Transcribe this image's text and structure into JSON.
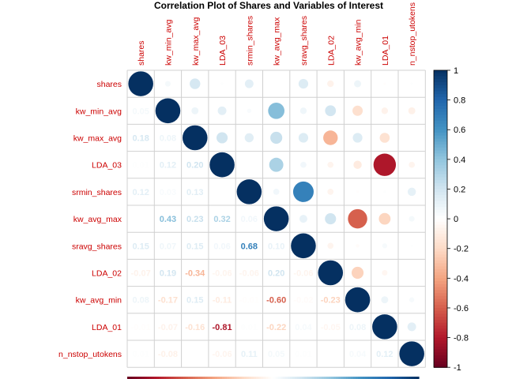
{
  "chart_data": {
    "type": "heatmap",
    "title": "Correlation Plot of Shares and Variables of Interest",
    "variables": [
      "shares",
      "kw_min_avg",
      "kw_max_avg",
      "LDA_03",
      "srmin_shares",
      "kw_avg_max",
      "sravg_shares",
      "LDA_02",
      "kw_avg_min",
      "LDA_01",
      "n_nstop_utokens"
    ],
    "matrix": [
      [
        1.0,
        0.05,
        0.18,
        0.01,
        0.12,
        0.0,
        0.15,
        -0.07,
        0.08,
        -0.01,
        0.01
      ],
      [
        0.05,
        1.0,
        0.08,
        0.12,
        0.03,
        0.43,
        0.07,
        0.19,
        -0.17,
        -0.07,
        -0.08
      ],
      [
        0.18,
        0.08,
        1.0,
        0.2,
        0.13,
        0.23,
        0.15,
        -0.34,
        0.15,
        -0.16,
        0.0
      ],
      [
        0.01,
        0.12,
        0.2,
        1.0,
        0.0,
        0.32,
        0.06,
        -0.06,
        -0.11,
        -0.81,
        -0.06
      ],
      [
        0.12,
        0.03,
        0.13,
        0.0,
        1.0,
        0.06,
        0.68,
        -0.06,
        -0.01,
        0.01,
        0.11
      ],
      [
        0.0,
        0.43,
        0.23,
        0.32,
        0.06,
        1.0,
        0.1,
        0.2,
        -0.6,
        -0.22,
        0.05
      ],
      [
        0.15,
        0.07,
        0.15,
        0.06,
        0.68,
        0.1,
        1.0,
        -0.06,
        -0.02,
        0.04,
        0.01
      ],
      [
        -0.07,
        0.19,
        -0.34,
        -0.06,
        -0.06,
        0.2,
        -0.06,
        1.0,
        -0.23,
        -0.05,
        0.0
      ],
      [
        0.08,
        -0.17,
        0.15,
        -0.11,
        -0.01,
        -0.6,
        -0.02,
        -0.23,
        1.0,
        0.08,
        0.04
      ],
      [
        -0.01,
        -0.07,
        -0.16,
        -0.81,
        0.01,
        -0.22,
        0.04,
        -0.05,
        0.08,
        1.0,
        0.12
      ],
      [
        0.01,
        -0.08,
        0.0,
        -0.06,
        0.11,
        0.05,
        0.01,
        0.0,
        0.04,
        0.12,
        1.0
      ]
    ],
    "upper": "circle",
    "lower": "number",
    "colorbar": {
      "range": [
        -1,
        1
      ],
      "ticks": [
        "1",
        "0.8",
        "0.6",
        "0.4",
        "0.2",
        "0",
        "-0.2",
        "-0.4",
        "-0.6",
        "-0.8",
        "-1"
      ]
    },
    "colors": {
      "negative_strong": "#67001f",
      "negative_mid": "#d6604d",
      "neutral": "#ffffff",
      "positive_mid": "#4393c3",
      "positive_strong": "#053061",
      "label_color": "#cc0000",
      "grid_color": "#d0d0d0"
    }
  }
}
